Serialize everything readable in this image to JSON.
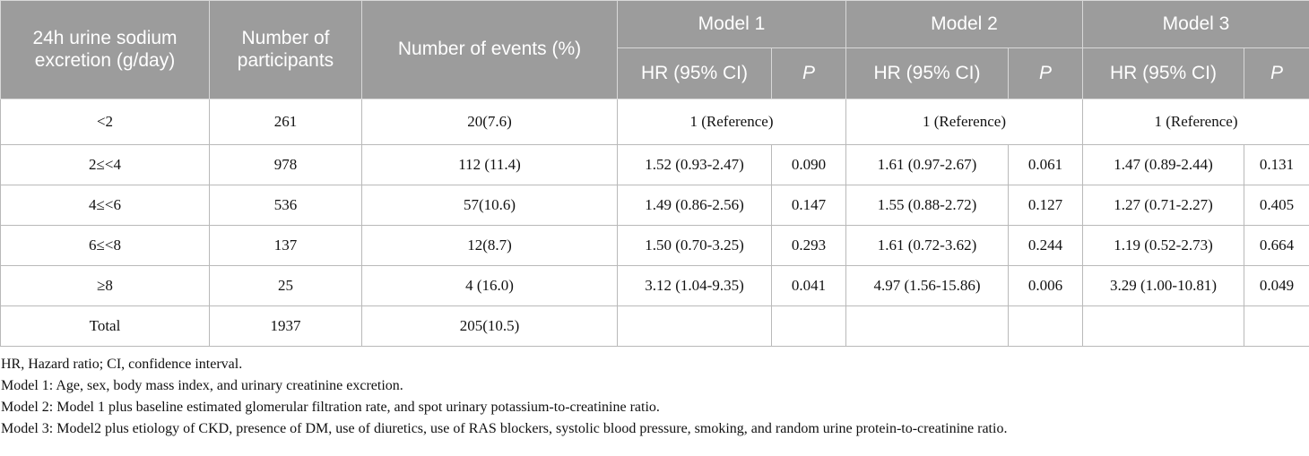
{
  "table": {
    "header": {
      "col_exposure": "24h urine sodium excretion (g/day)",
      "col_participants": "Number of participants",
      "col_events": "Number of events (%)",
      "models": [
        "Model 1",
        "Model 2",
        "Model 3"
      ],
      "hr_label": "HR (95% CI)",
      "p_label": "P"
    },
    "rows": [
      {
        "category": "<2",
        "participants": "261",
        "events": "20(7.6)",
        "reference": "1 (Reference)"
      },
      {
        "category": "2≤<4",
        "participants": "978",
        "events": "112 (11.4)",
        "m1_hr": "1.52 (0.93-2.47)",
        "m1_p": "0.090",
        "m2_hr": "1.61 (0.97-2.67)",
        "m2_p": "0.061",
        "m3_hr": "1.47 (0.89-2.44)",
        "m3_p": "0.131"
      },
      {
        "category": "4≤<6",
        "participants": "536",
        "events": "57(10.6)",
        "m1_hr": "1.49 (0.86-2.56)",
        "m1_p": "0.147",
        "m2_hr": "1.55 (0.88-2.72)",
        "m2_p": "0.127",
        "m3_hr": "1.27 (0.71-2.27)",
        "m3_p": "0.405"
      },
      {
        "category": "6≤<8",
        "participants": "137",
        "events": "12(8.7)",
        "m1_hr": "1.50 (0.70-3.25)",
        "m1_p": "0.293",
        "m2_hr": "1.61 (0.72-3.62)",
        "m2_p": "0.244",
        "m3_hr": "1.19 (0.52-2.73)",
        "m3_p": "0.664"
      },
      {
        "category": "≥8",
        "participants": "25",
        "events": "4 (16.0)",
        "m1_hr": "3.12 (1.04-9.35)",
        "m1_p": "0.041",
        "m2_hr": "4.97 (1.56-15.86)",
        "m2_p": "0.006",
        "m3_hr": "3.29 (1.00-10.81)",
        "m3_p": "0.049"
      },
      {
        "category": "Total",
        "participants": "1937",
        "events": "205(10.5)"
      }
    ]
  },
  "footnotes": [
    "HR, Hazard ratio; CI, confidence interval.",
    "Model 1: Age, sex, body mass index, and urinary creatinine excretion.",
    "Model 2: Model 1 plus baseline estimated glomerular filtration rate, and spot urinary potassium-to-creatinine ratio.",
    "Model 3: Model2 plus etiology of CKD, presence of DM, use of diuretics, use of RAS blockers, systolic blood pressure, smoking, and random urine protein-to-creatinine ratio."
  ]
}
